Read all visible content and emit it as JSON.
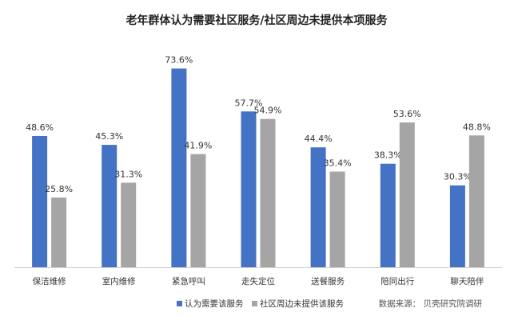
{
  "chart_data": {
    "type": "bar",
    "title": "老年群体认为需要社区服务/社区周边未提供本项服务",
    "categories": [
      "保洁维修",
      "室内维修",
      "紧急呼叫",
      "走失定位",
      "送餐服务",
      "陪同出行",
      "聊天陪伴"
    ],
    "series": [
      {
        "name": "认为需要该服务",
        "color": "#4472C4",
        "values": [
          48.6,
          45.3,
          73.6,
          57.7,
          44.4,
          38.3,
          30.3
        ],
        "labels": [
          "48.6%",
          "45.3%",
          "73.6%",
          "57.7%",
          "44.4%",
          "38.3%",
          "30.3%"
        ]
      },
      {
        "name": "社区周边未提供该服务",
        "color": "#A5A5A5",
        "values": [
          25.8,
          31.3,
          41.9,
          54.9,
          35.4,
          53.6,
          48.8
        ],
        "labels": [
          "25.8%",
          "31.3%",
          "41.9%",
          "54.9%",
          "35.4%",
          "53.6%",
          "48.8%"
        ]
      }
    ],
    "ylim": [
      0,
      80
    ],
    "grid": false,
    "legend_position": "bottom-center"
  },
  "source_note": "数据来源： 贝壳研究院调研"
}
